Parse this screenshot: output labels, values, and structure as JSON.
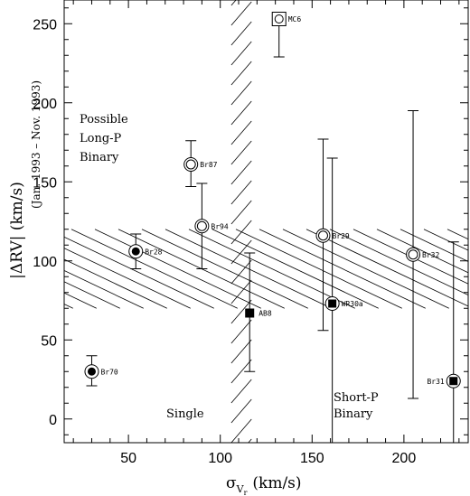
{
  "chart_data": {
    "type": "scatter",
    "xlim": [
      15,
      235
    ],
    "ylim": [
      -15,
      265
    ],
    "xticks": [
      50,
      100,
      150,
      200
    ],
    "yticks": [
      0,
      50,
      100,
      150,
      200,
      250
    ],
    "xlabel_main": "σ",
    "xlabel_sub": "V",
    "xlabel_subsub": "r",
    "xlabel_unit": "(km/s)",
    "ylabel": "|ΔRV| (km/s)",
    "ylabel_secondary": "(Jan. 1993 – Nov. 1993)",
    "region_labels": {
      "long_p": [
        "Possible",
        "Long-P",
        "Binary"
      ],
      "single": "Single",
      "short_p": [
        "Short-P",
        "Binary"
      ]
    },
    "points": [
      {
        "label": "MC6",
        "x": 132,
        "y": 253,
        "marker": "square-open-circle",
        "y_err_low": 229,
        "y_err_high": 253
      },
      {
        "label": "Br87",
        "x": 84,
        "y": 161,
        "marker": "double-circle",
        "y_err_low": 147,
        "y_err_high": 176
      },
      {
        "label": "Br94",
        "x": 90,
        "y": 122,
        "marker": "double-circle",
        "y_err_low": 95,
        "y_err_high": 149
      },
      {
        "label": "Br28",
        "x": 54,
        "y": 106,
        "marker": "circle-filled-dot",
        "y_err_low": 95,
        "y_err_high": 117
      },
      {
        "label": "Br29",
        "x": 156,
        "y": 116,
        "marker": "double-circle",
        "y_err_low": 56,
        "y_err_high": 177
      },
      {
        "label": "WR30a",
        "x": 161,
        "y": 73,
        "marker": "circle-filled-square",
        "y_err_low": -15,
        "y_err_high": 165
      },
      {
        "label": "AB8",
        "x": 116,
        "y": 67,
        "marker": "filled-square",
        "y_err_low": 30,
        "y_err_high": 105
      },
      {
        "label": "Br32",
        "x": 205,
        "y": 104,
        "marker": "double-circle",
        "y_err_low": 13,
        "y_err_high": 195
      },
      {
        "label": "Br31",
        "x": 227,
        "y": 24,
        "marker": "circle-filled-square",
        "y_err_low": -15,
        "y_err_high": 112
      },
      {
        "label": "Br70",
        "x": 30,
        "y": 30,
        "marker": "circle-filled-dot",
        "y_err_low": 21,
        "y_err_high": 40
      }
    ],
    "hatched_regions": [
      {
        "name": "vertical-band",
        "x_from": 106,
        "x_to": 117,
        "note": "single-star dispersion boundary"
      },
      {
        "name": "horizontal-band",
        "y_from": 70,
        "y_to": 120,
        "note": "binary threshold band"
      }
    ]
  }
}
